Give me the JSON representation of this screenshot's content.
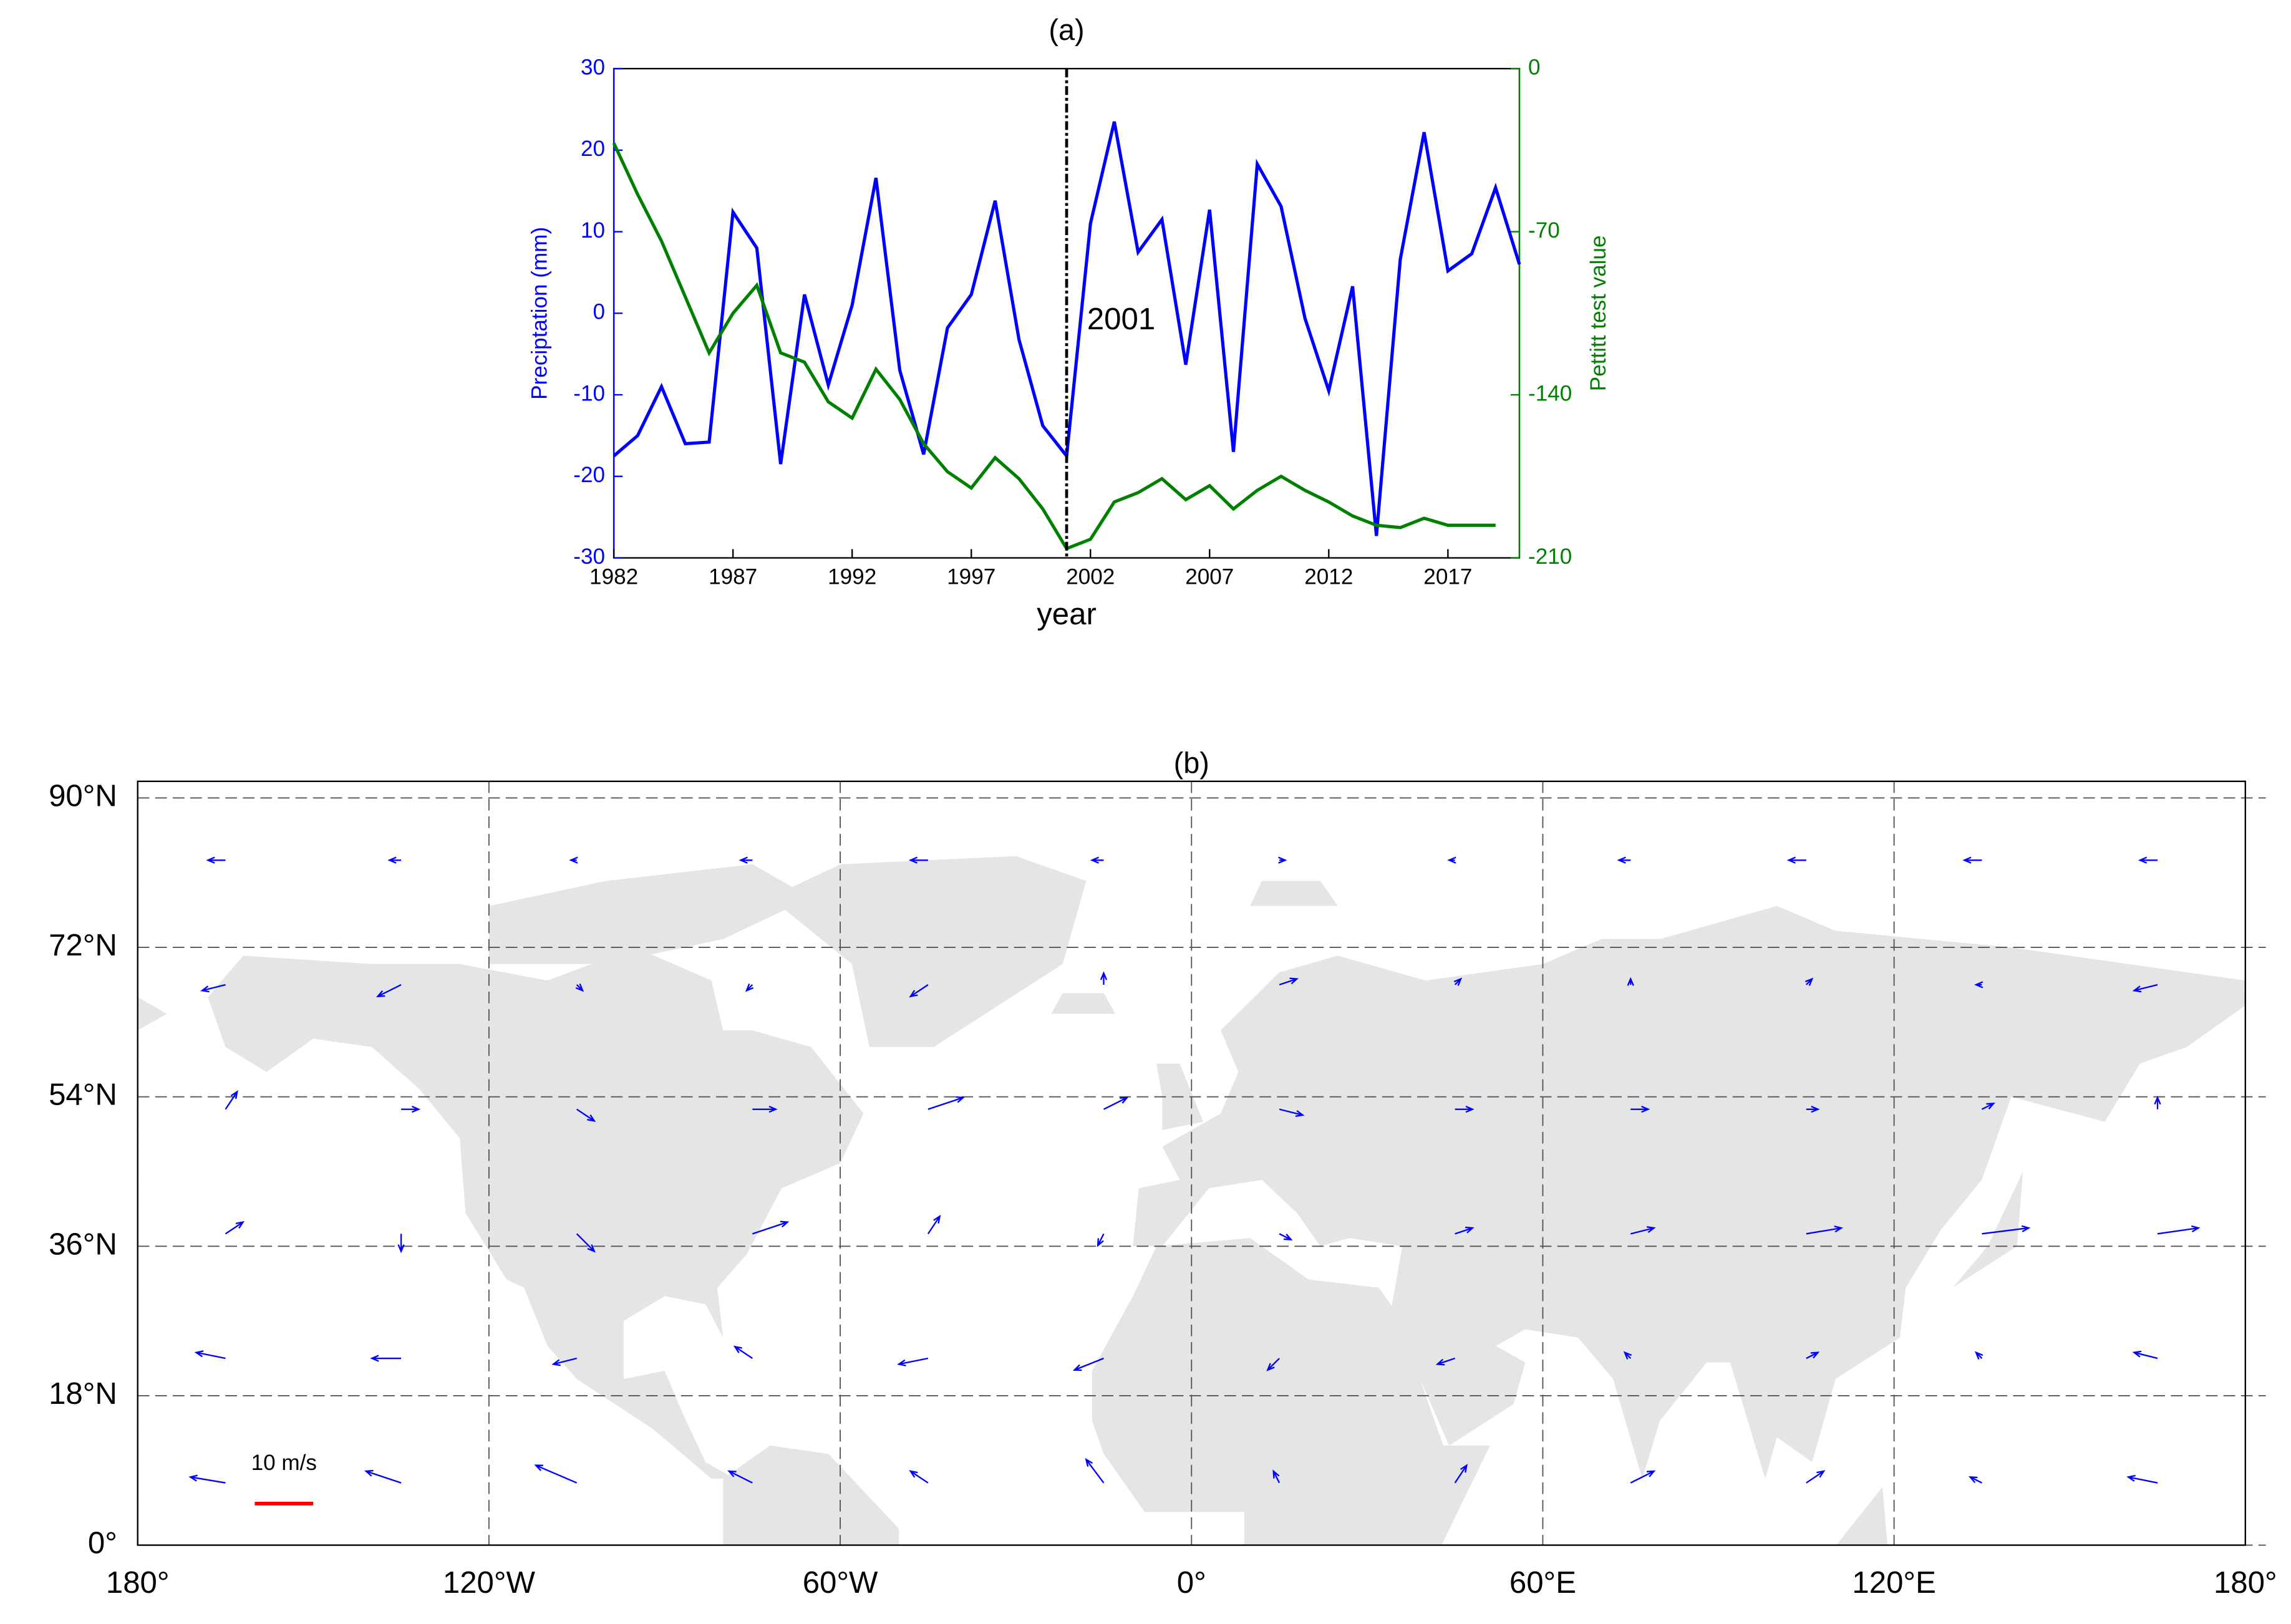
{
  "chart_data": [
    {
      "type": "line",
      "title": "(a)",
      "xlabel": "year",
      "ylabel": "Preciptation (mm)",
      "y2label": "Pettitt test value",
      "x": [
        1982,
        1983,
        1984,
        1985,
        1986,
        1987,
        1988,
        1989,
        1990,
        1991,
        1992,
        1993,
        1994,
        1995,
        1996,
        1997,
        1998,
        1999,
        2000,
        2001,
        2002,
        2003,
        2004,
        2005,
        2006,
        2007,
        2008,
        2009,
        2010,
        2011,
        2012,
        2013,
        2014,
        2015,
        2016,
        2017,
        2018,
        2019,
        2020
      ],
      "xlim": [
        1982,
        2020
      ],
      "xticks": [
        1982,
        1987,
        1992,
        1997,
        2002,
        2007,
        2012,
        2017
      ],
      "ylim": [
        -30,
        30
      ],
      "yticks": [
        -30,
        -20,
        -10,
        0,
        10,
        20,
        30
      ],
      "y2lim": [
        -210,
        0
      ],
      "y2ticks": [
        -210,
        -140,
        -70,
        0
      ],
      "series": [
        {
          "name": "Preciptation (mm)",
          "color": "#0000ff",
          "values": [
            -17.5,
            -15,
            -9,
            -16,
            -15.8,
            12.4,
            8,
            -18.5,
            2.3,
            -8.8,
            1,
            16.6,
            -7,
            -17.3,
            -1.8,
            2.3,
            13.8,
            -3.2,
            -13.8,
            -17.5,
            11,
            23.5,
            7.5,
            11.5,
            -6.3,
            12.7,
            -17,
            18.3,
            13.1,
            -0.6,
            -9.5,
            3.3,
            -27.3,
            6.6,
            22.2,
            5.2,
            7.3,
            15.4,
            6
          ]
        },
        {
          "name": "Pettitt test value",
          "color": "#008000",
          "axis": "y2",
          "values": [
            -32,
            -54,
            -74,
            -98,
            -122,
            -105,
            -93,
            -122,
            -126,
            -143,
            -150,
            -129,
            -142,
            -161,
            -173,
            -180,
            -167,
            -176,
            -189,
            -206,
            -202,
            -186,
            -182,
            -176,
            -185,
            -179,
            -189,
            -181,
            -175,
            -181,
            -186,
            -192,
            -196,
            -197,
            -193,
            -196,
            -196,
            -196,
            null
          ]
        }
      ],
      "annotations": [
        {
          "x": 2001,
          "text": "2001"
        }
      ]
    },
    {
      "type": "quiver",
      "title": "(b)",
      "xlim": [
        -180,
        180
      ],
      "xticks": [
        {
          "value": -180,
          "label": "180°"
        },
        {
          "value": -120,
          "label": "120°W"
        },
        {
          "value": -60,
          "label": "60°W"
        },
        {
          "value": 0,
          "label": "0°"
        },
        {
          "value": 60,
          "label": "60°E"
        },
        {
          "value": 120,
          "label": "120°E"
        },
        {
          "value": 180,
          "label": "180°"
        }
      ],
      "ylim": [
        0,
        92
      ],
      "yticks": [
        {
          "value": 0,
          "label": "0°"
        },
        {
          "value": 18,
          "label": "18°N"
        },
        {
          "value": 36,
          "label": "36°N"
        },
        {
          "value": 54,
          "label": "54°N"
        },
        {
          "value": 72,
          "label": "72°N"
        },
        {
          "value": 90,
          "label": "90°N"
        }
      ],
      "grid": true,
      "color": "#0000ff",
      "vectors": {
        "lon": [
          -165,
          -135,
          -105,
          -75,
          -45,
          -15,
          15,
          45,
          75,
          105,
          135,
          165
        ],
        "lat": [
          7.5,
          22.5,
          37.5,
          52.5,
          67.5,
          82.5
        ],
        "u": [
          [
            -6,
            -6,
            -7,
            -4,
            -3,
            -3,
            -1,
            2,
            4,
            3,
            -2,
            -5
          ],
          [
            -5,
            -5,
            -4,
            -3,
            -5,
            -5,
            -2,
            -3,
            -1,
            2,
            -1,
            -4
          ],
          [
            3,
            0,
            3,
            6,
            2,
            -1,
            2,
            3,
            4,
            6,
            8,
            7
          ],
          [
            2,
            3,
            3,
            4,
            6,
            4,
            4,
            3,
            3,
            2,
            2,
            0
          ],
          [
            -4,
            -4,
            1,
            -1,
            -3,
            0,
            3,
            1,
            0,
            1,
            -1,
            -4
          ],
          [
            -3,
            -2,
            -1,
            -2,
            -3,
            -2,
            1,
            -1,
            -2,
            -3,
            -3,
            -3
          ]
        ],
        "v": [
          [
            1,
            2,
            3,
            2,
            2,
            4,
            2,
            3,
            2,
            2,
            1,
            1
          ],
          [
            1,
            0,
            -1,
            2,
            -1,
            -2,
            -2,
            -1,
            1,
            1,
            1,
            1
          ],
          [
            2,
            -3,
            -3,
            2,
            3,
            -2,
            -1,
            1,
            1,
            1,
            1,
            1
          ],
          [
            3,
            0,
            -2,
            0,
            2,
            2,
            -1,
            0,
            0,
            0,
            1,
            2
          ],
          [
            -1,
            -2,
            -1,
            -1,
            -2,
            2,
            1,
            1,
            1,
            1,
            0,
            -1
          ],
          [
            0,
            0,
            0,
            0,
            0,
            0,
            0,
            0,
            0,
            0,
            0,
            0
          ]
        ]
      },
      "reference": {
        "value": 10,
        "label": "10 m/s",
        "color": "#ff0000"
      }
    }
  ]
}
